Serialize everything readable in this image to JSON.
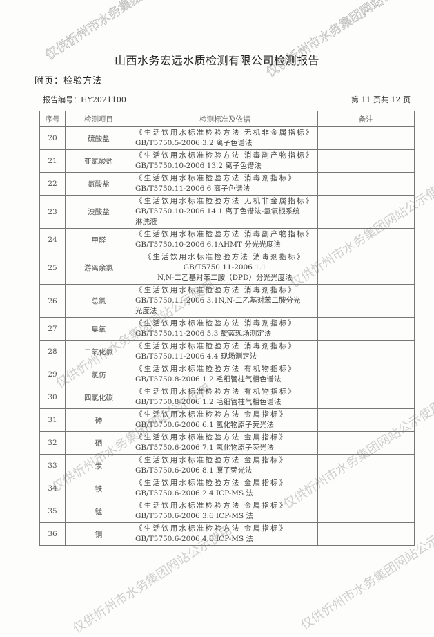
{
  "header": {
    "title": "山西水务宏远水质检测有限公司检测报告",
    "appendix": "附页：检验方法",
    "report_no": "报告编号：HY2021100",
    "page_info": "第 11 页共 12 页"
  },
  "table": {
    "columns": [
      "序号",
      "检测项目",
      "检测标准及依据",
      "备注"
    ],
    "rows": [
      {
        "no": "20",
        "item": "硫酸盐",
        "std": [
          "《生活饮用水标准检验方法 无机非金属指标》",
          "GB/T5750.5-2006  3.2 离子色谱法"
        ],
        "note": ""
      },
      {
        "no": "21",
        "item": "亚氯酸盐",
        "std": [
          "《生活饮用水标准检验方法 消毒副产物指标》",
          "GB/T5750.10-2006  13.2 离子色谱法"
        ],
        "note": ""
      },
      {
        "no": "22",
        "item": "氯酸盐",
        "std": [
          "《生活饮用水标准检验方法  消毒剂指标》",
          "GB/T5750.11-2006  6 离子色谱法"
        ],
        "note": ""
      },
      {
        "no": "23",
        "item": "溴酸盐",
        "std": [
          "《生活饮用水标准检验方法 无机非金属指标》",
          "GB/T5750.10-2006  14.1 离子色谱法-氢氧根系统",
          "淋洗液"
        ],
        "note": ""
      },
      {
        "no": "24",
        "item": "甲醛",
        "std": [
          "《生活饮用水标准检验方法 消毒副产物指标》",
          "GB/T5750.10-2006  6.1AHMT 分光光度法"
        ],
        "note": ""
      },
      {
        "no": "25",
        "item": "游离余氯",
        "std": [
          "《生活饮用水标准检验方法 消毒剂指标》",
          "GB/T5750.11-2006 1.1",
          "N,N-二乙基对苯二胺（DPD）分光光度法"
        ],
        "note": "",
        "centered": true
      },
      {
        "no": "26",
        "item": "总氯",
        "std": [
          "《生活饮用水标准检验方法  消毒剂指标》",
          "GB/T5750.11-2006  3.1N,N-二乙基对苯二胺分光",
          "光度法"
        ],
        "note": ""
      },
      {
        "no": "27",
        "item": "臭氧",
        "std": [
          "《生活饮用水标准检验方法  消毒剂指标》",
          "GB/T5750.11-2006  5.3 靛蓝现场测定法"
        ],
        "note": ""
      },
      {
        "no": "28",
        "item": "二氧化氯",
        "std": [
          "《生活饮用水标准检验方法  消毒剂指标》",
          "GB/T5750.11-2006  4.4 现场测定法"
        ],
        "note": ""
      },
      {
        "no": "29",
        "item": "氯仿",
        "std": [
          "《生活饮用水标准检验方法  有机物指标》",
          "GB/T5750.8-2006  1.2 毛细管柱气相色谱法"
        ],
        "note": ""
      },
      {
        "no": "30",
        "item": "四氯化碳",
        "std": [
          "《生活饮用水标准检验方法  有机物指标》",
          "GB/T5750.8-2006  1.2 毛细管柱气相色谱法"
        ],
        "note": ""
      },
      {
        "no": "31",
        "item": "砷",
        "std": [
          "《生活饮用水标准检验方法  金属指标》",
          "GB/T5750.6-2006  6.1 氢化物原子荧光法"
        ],
        "note": ""
      },
      {
        "no": "32",
        "item": "硒",
        "std": [
          "《生活饮用水标准检验方法  金属指标》",
          "GB/T5750.6-2006  7.1 氢化物原子荧光法"
        ],
        "note": ""
      },
      {
        "no": "33",
        "item": "汞",
        "std": [
          "《生活饮用水标准检验方法  金属指标》",
          "GB/T5750.6-2006  8.1 原子荧光法"
        ],
        "note": ""
      },
      {
        "no": "34",
        "item": "铁",
        "std": [
          "《生活饮用水标准检验方法  金属指标》",
          "GB/T5750.6-2006  2.4 ICP-MS 法"
        ],
        "note": ""
      },
      {
        "no": "35",
        "item": "锰",
        "std": [
          "《生活饮用水标准检验方法  金属指标》",
          "GB/T5750.6-2006  3.6 ICP-MS 法"
        ],
        "note": ""
      },
      {
        "no": "36",
        "item": "铜",
        "std": [
          "《生活饮用水标准检验方法  金属指标》",
          "GB/T5750.6-2006  4.6 ICP-MS 法"
        ],
        "note": ""
      }
    ]
  },
  "watermark": "仅供忻州市水务集团网站公示使用"
}
